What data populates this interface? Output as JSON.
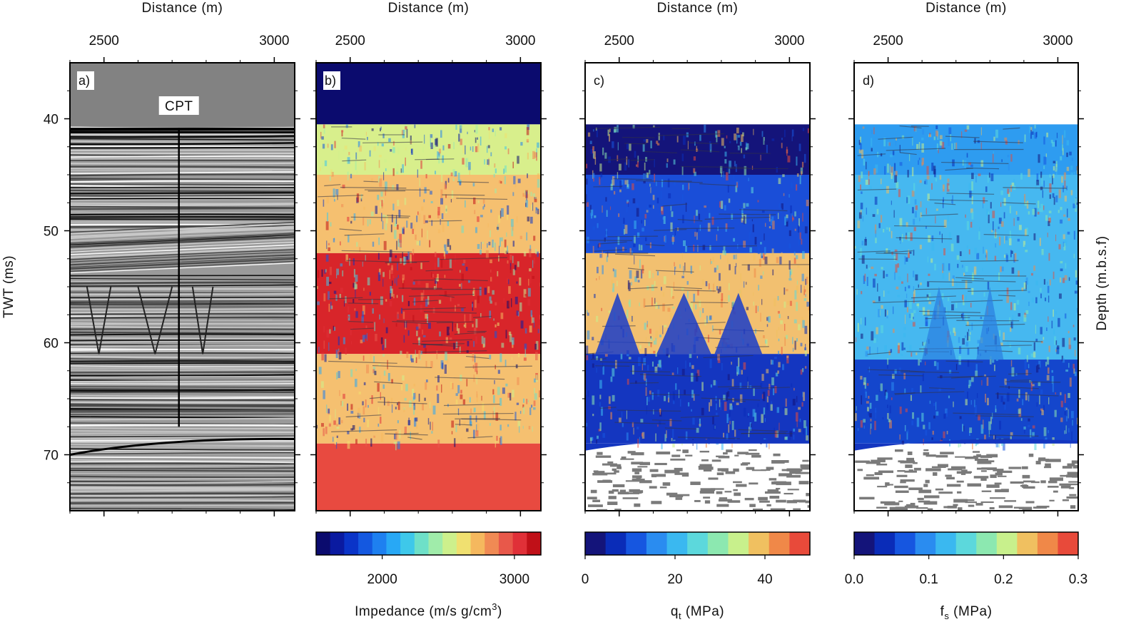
{
  "chart_data": [
    {
      "type": "heatmap",
      "panel": "a)",
      "annotation": "CPT",
      "xlabel": "Distance (m)",
      "ylabel": "TWT (ms)",
      "xlim": [
        2400,
        3060
      ],
      "ylim": [
        75,
        35
      ],
      "xticks": [
        "2500",
        "3000"
      ],
      "yticks": [
        "40",
        "50",
        "60",
        "70"
      ],
      "cpt_line": {
        "x": 2720,
        "y_top": 40.8,
        "y_bottom": 67.5
      },
      "seafloor_twt": 40.8,
      "palette": [
        "#3a3a3a",
        "#8a8a8a",
        "#e8e8e8"
      ],
      "background": "#828282"
    },
    {
      "type": "heatmap",
      "panel": "b)",
      "xlabel": "Distance (m)",
      "xlim": [
        2400,
        3060
      ],
      "ylim": [
        75,
        35
      ],
      "xticks": [
        "2500",
        "3000"
      ],
      "colorbar": {
        "label_main": "Impedance  (m/s g/cm",
        "label_sup": "3",
        "label_tail": ")",
        "range": [
          1500,
          3200
        ],
        "ticks": [
          "2000",
          "3000"
        ],
        "tick_values": [
          2000,
          3000
        ],
        "colors": [
          "#0b0b6e",
          "#0a1aa0",
          "#0a34c8",
          "#1458e0",
          "#1e80f0",
          "#28a8f5",
          "#3ec8ea",
          "#6ee0c8",
          "#a0ecaa",
          "#cdf08c",
          "#f0e070",
          "#f5b85e",
          "#f08a54",
          "#e8584a",
          "#e03038",
          "#c01018"
        ]
      },
      "layers": [
        {
          "from": 35,
          "to": 40.5,
          "color": "#0b0b6e"
        },
        {
          "from": 40.5,
          "to": 45,
          "color": "#d8ef8c"
        },
        {
          "from": 45,
          "to": 52,
          "color": "#f5c070"
        },
        {
          "from": 52,
          "to": 61,
          "color": "#d8252a"
        },
        {
          "from": 61,
          "to": 69,
          "color": "#f5c070"
        },
        {
          "from": 69,
          "to": 75,
          "color": "#e84a40"
        }
      ]
    },
    {
      "type": "heatmap",
      "panel": "c)",
      "xlabel": "Distance (m)",
      "xlim": [
        2400,
        3060
      ],
      "ylim": [
        75,
        35
      ],
      "xticks": [
        "2500",
        "3000"
      ],
      "colorbar": {
        "label_main": "q",
        "label_sub": "t",
        "label_tail": " (MPa)",
        "range": [
          0,
          50
        ],
        "ticks": [
          "0",
          "20",
          "40"
        ],
        "tick_values": [
          0,
          20,
          40
        ],
        "colors": [
          "#14147a",
          "#0a2cb8",
          "#1656e0",
          "#2a8cf0",
          "#3ab8f0",
          "#5cd8dc",
          "#8ce8b0",
          "#c8f08c",
          "#f0c060",
          "#f08848",
          "#e84a3a"
        ]
      },
      "layers": [
        {
          "from": 35,
          "to": 40.5,
          "color": "#ffffff"
        },
        {
          "from": 40.5,
          "to": 45,
          "color": "#14147a"
        },
        {
          "from": 45,
          "to": 52,
          "color": "#1a4ed8"
        },
        {
          "from": 52,
          "to": 61,
          "color": "#f2c070"
        },
        {
          "from": 61,
          "to": 69,
          "color": "#1436c0"
        },
        {
          "from": 69,
          "to": 75,
          "color": "#ffffff"
        }
      ]
    },
    {
      "type": "heatmap",
      "panel": "d)",
      "xlabel": "Distance (m)",
      "ylabel_right": "Depth (m.b.s.f)",
      "xlim": [
        2400,
        3060
      ],
      "ylim": [
        75,
        35
      ],
      "xticks": [
        "2500",
        "3000"
      ],
      "colorbar": {
        "label_main": "f",
        "label_sub": "s",
        "label_tail": " (MPa)",
        "range": [
          0,
          0.3
        ],
        "ticks": [
          "0.0",
          "0.1",
          "0.2",
          "0.3"
        ],
        "tick_values": [
          0,
          0.1,
          0.2,
          0.3
        ],
        "colors": [
          "#14147a",
          "#0a2cb8",
          "#1656e0",
          "#2a8cf0",
          "#3ab8f0",
          "#5cd8dc",
          "#8ce8b0",
          "#c8f08c",
          "#f0c060",
          "#f08848",
          "#e84a3a"
        ]
      },
      "layers": [
        {
          "from": 35,
          "to": 40.5,
          "color": "#ffffff"
        },
        {
          "from": 40.5,
          "to": 45,
          "color": "#2e9cf0"
        },
        {
          "from": 45,
          "to": 61.5,
          "color": "#46b8f0"
        },
        {
          "from": 61.5,
          "to": 69,
          "color": "#1446cc"
        },
        {
          "from": 69,
          "to": 75,
          "color": "#ffffff"
        }
      ]
    }
  ]
}
